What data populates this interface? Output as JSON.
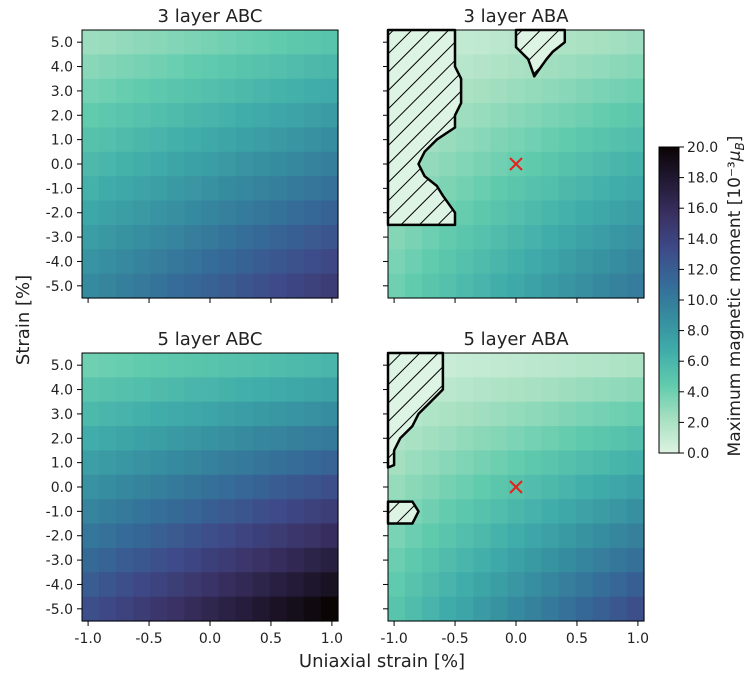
{
  "figure": {
    "xlabel": "Uniaxial strain [%]",
    "ylabel": "Strain [%]",
    "colorbar": {
      "label": "Maximum magnetic moment [10⁻³μ_B]",
      "min": 0.0,
      "max": 20.0,
      "ticks": [
        "0.0",
        "2.0",
        "4.0",
        "6.0",
        "8.0",
        "10.0",
        "12.0",
        "14.0",
        "16.0",
        "18.0",
        "20.0"
      ],
      "colormap": "mako_r",
      "stops": [
        "#ddf3e3",
        "#a6e0c1",
        "#61cbad",
        "#40adaa",
        "#368c9f",
        "#356b98",
        "#3e4a89",
        "#3a3163",
        "#221a35",
        "#0b0405"
      ]
    }
  },
  "chart_data": [
    {
      "type": "heatmap",
      "title": "3 layer ABC",
      "x_ticks": [
        "-1.0",
        "-0.5",
        "0.0",
        "0.5",
        "1.0"
      ],
      "y_ticks": [
        "5.0",
        "4.0",
        "3.0",
        "2.0",
        "1.0",
        "0.0",
        "-1.0",
        "-2.0",
        "-3.0",
        "-4.0",
        "-5.0"
      ],
      "xlim": [
        -1.05,
        1.05
      ],
      "ylim": [
        -5.5,
        5.5
      ],
      "value_model": {
        "corner_x_neg_y_pos": 2.5,
        "corner_x_pos_y_pos": 5.0,
        "corner_x_neg_y_neg": 9.0,
        "corner_x_pos_y_neg": 14.5
      },
      "hatched_regions": [],
      "markers": []
    },
    {
      "type": "heatmap",
      "title": "3 layer ABA",
      "x_ticks": [
        "-1.0",
        "-0.5",
        "0.0",
        "0.5",
        "1.0"
      ],
      "y_ticks": [
        "5.0",
        "4.0",
        "3.0",
        "2.0",
        "1.0",
        "0.0",
        "-1.0",
        "-2.0",
        "-3.0",
        "-4.0",
        "-5.0"
      ],
      "xlim": [
        -1.05,
        1.05
      ],
      "ylim": [
        -5.5,
        5.5
      ],
      "value_model": {
        "corner_x_neg_y_pos": 0.5,
        "corner_x_pos_y_pos": 2.5,
        "corner_x_neg_y_neg": 4.0,
        "corner_x_pos_y_neg": 10.0
      },
      "hatched_regions": [
        [
          [
            -1.05,
            5.5
          ],
          [
            -0.5,
            5.5
          ],
          [
            -0.5,
            4.0
          ],
          [
            -0.45,
            3.5
          ],
          [
            -0.45,
            2.5
          ],
          [
            -0.5,
            2.0
          ],
          [
            -0.5,
            1.5
          ],
          [
            -0.65,
            1.0
          ],
          [
            -0.75,
            0.5
          ],
          [
            -0.8,
            0.0
          ],
          [
            -0.75,
            -0.5
          ],
          [
            -0.65,
            -0.9
          ],
          [
            -0.6,
            -1.3
          ],
          [
            -0.5,
            -2.0
          ],
          [
            -0.5,
            -2.5
          ],
          [
            -1.05,
            -2.5
          ]
        ],
        [
          [
            0.0,
            5.5
          ],
          [
            0.4,
            5.5
          ],
          [
            0.4,
            5.0
          ],
          [
            0.3,
            4.6
          ],
          [
            0.25,
            4.3
          ],
          [
            0.15,
            3.6
          ],
          [
            0.1,
            4.3
          ],
          [
            0.0,
            4.8
          ]
        ]
      ],
      "markers": [
        {
          "x": 0.0,
          "y": 0.0,
          "symbol": "x",
          "color": "#e3221b"
        }
      ]
    },
    {
      "type": "heatmap",
      "title": "5 layer ABC",
      "x_ticks": [
        "-1.0",
        "-0.5",
        "0.0",
        "0.5",
        "1.0"
      ],
      "y_ticks": [
        "5.0",
        "4.0",
        "3.0",
        "2.0",
        "1.0",
        "0.0",
        "-1.0",
        "-2.0",
        "-3.0",
        "-4.0",
        "-5.0"
      ],
      "xlim": [
        -1.05,
        1.05
      ],
      "ylim": [
        -5.5,
        5.5
      ],
      "value_model": {
        "corner_x_neg_y_pos": 4.0,
        "corner_x_pos_y_pos": 6.0,
        "corner_x_neg_y_neg": 13.0,
        "corner_x_pos_y_neg": 20.0
      },
      "hatched_regions": [],
      "markers": []
    },
    {
      "type": "heatmap",
      "title": "5 layer ABA",
      "x_ticks": [
        "-1.0",
        "-0.5",
        "0.0",
        "0.5",
        "1.0"
      ],
      "y_ticks": [
        "5.0",
        "4.0",
        "3.0",
        "2.0",
        "1.0",
        "0.0",
        "-1.0",
        "-2.0",
        "-3.0",
        "-4.0",
        "-5.0"
      ],
      "xlim": [
        -1.05,
        1.05
      ],
      "ylim": [
        -5.5,
        5.5
      ],
      "value_model": {
        "corner_x_neg_y_pos": 0.5,
        "corner_x_pos_y_pos": 2.0,
        "corner_x_neg_y_neg": 5.0,
        "corner_x_pos_y_neg": 13.0
      },
      "hatched_regions": [
        [
          [
            -1.05,
            5.5
          ],
          [
            -0.6,
            5.5
          ],
          [
            -0.6,
            4.0
          ],
          [
            -0.7,
            3.5
          ],
          [
            -0.8,
            3.0
          ],
          [
            -0.85,
            2.5
          ],
          [
            -0.95,
            2.0
          ],
          [
            -1.0,
            1.5
          ],
          [
            -1.0,
            0.9
          ],
          [
            -1.05,
            0.8
          ]
        ],
        [
          [
            -1.05,
            -0.6
          ],
          [
            -0.85,
            -0.6
          ],
          [
            -0.8,
            -1.0
          ],
          [
            -0.85,
            -1.5
          ],
          [
            -1.05,
            -1.5
          ]
        ]
      ],
      "markers": [
        {
          "x": 0.0,
          "y": 0.0,
          "symbol": "x",
          "color": "#e3221b"
        }
      ]
    }
  ]
}
